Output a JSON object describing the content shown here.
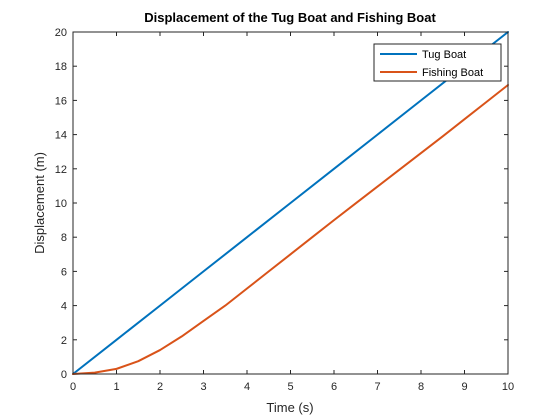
{
  "chart_data": {
    "type": "line",
    "title": "Displacement of the Tug Boat and Fishing Boat",
    "xlabel": "Time (s)",
    "ylabel": "Displacement (m)",
    "xlim": [
      0,
      10
    ],
    "ylim": [
      0,
      20
    ],
    "x_ticks": [
      0,
      1,
      2,
      3,
      4,
      5,
      6,
      7,
      8,
      9,
      10
    ],
    "y_ticks": [
      0,
      2,
      4,
      6,
      8,
      10,
      12,
      14,
      16,
      18,
      20
    ],
    "grid": false,
    "legend": "top-right",
    "series": [
      {
        "name": "Tug Boat",
        "color": "#0072BD",
        "x": [
          0,
          1,
          2,
          3,
          4,
          5,
          6,
          7,
          8,
          9,
          10
        ],
        "y": [
          0,
          2,
          4,
          6,
          8,
          10,
          12,
          14,
          16,
          18,
          20
        ]
      },
      {
        "name": "Fishing Boat",
        "color": "#D95319",
        "x": [
          0,
          0.5,
          1,
          1.5,
          2,
          2.5,
          3,
          3.5,
          4,
          4.5,
          5,
          5.5,
          6,
          6.5,
          7,
          7.5,
          8,
          8.5,
          9,
          9.5,
          10
        ],
        "y": [
          0,
          0.08,
          0.3,
          0.75,
          1.4,
          2.2,
          3.1,
          4.0,
          5.0,
          6.0,
          7.0,
          8.0,
          9.0,
          9.98,
          10.96,
          11.94,
          12.92,
          13.9,
          14.9,
          15.9,
          16.9
        ]
      }
    ]
  }
}
